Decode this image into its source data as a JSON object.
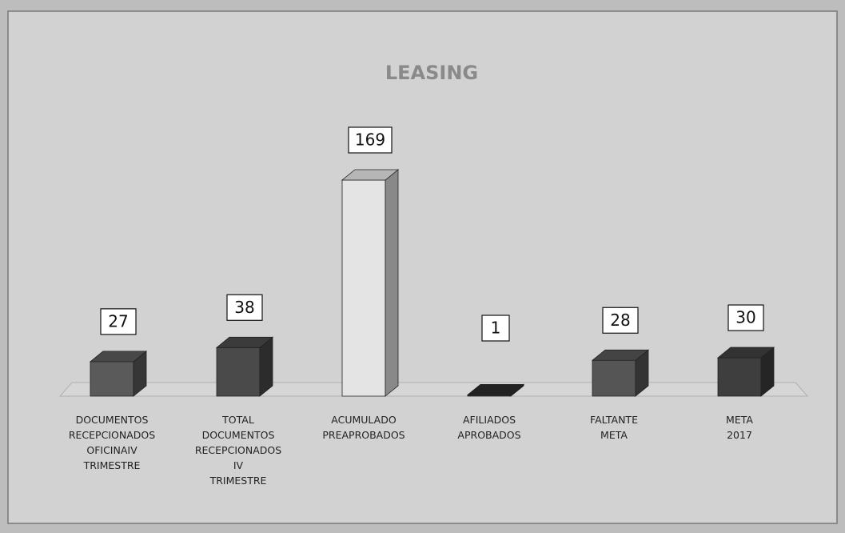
{
  "chart_data": {
    "type": "bar3d",
    "title": "LEASING",
    "categories": [
      "DOCUMENTOS RECEPCIONADOS OFICINAIV TRIMESTRE",
      "TOTAL DOCUMENTOS RECEPCIONADOS IV TRIMESTRE",
      "ACUMULADO PREAPROBADOS",
      "AFILIADOS APROBADOS",
      "FALTANTE META",
      "META 2017"
    ],
    "values": [
      27,
      38,
      169,
      1,
      28,
      30
    ],
    "colors": [
      "#5a5a5a",
      "#4a4a4a",
      "#e4e4e4",
      "#2a2a2a",
      "#555555",
      "#3e3e3e"
    ]
  }
}
